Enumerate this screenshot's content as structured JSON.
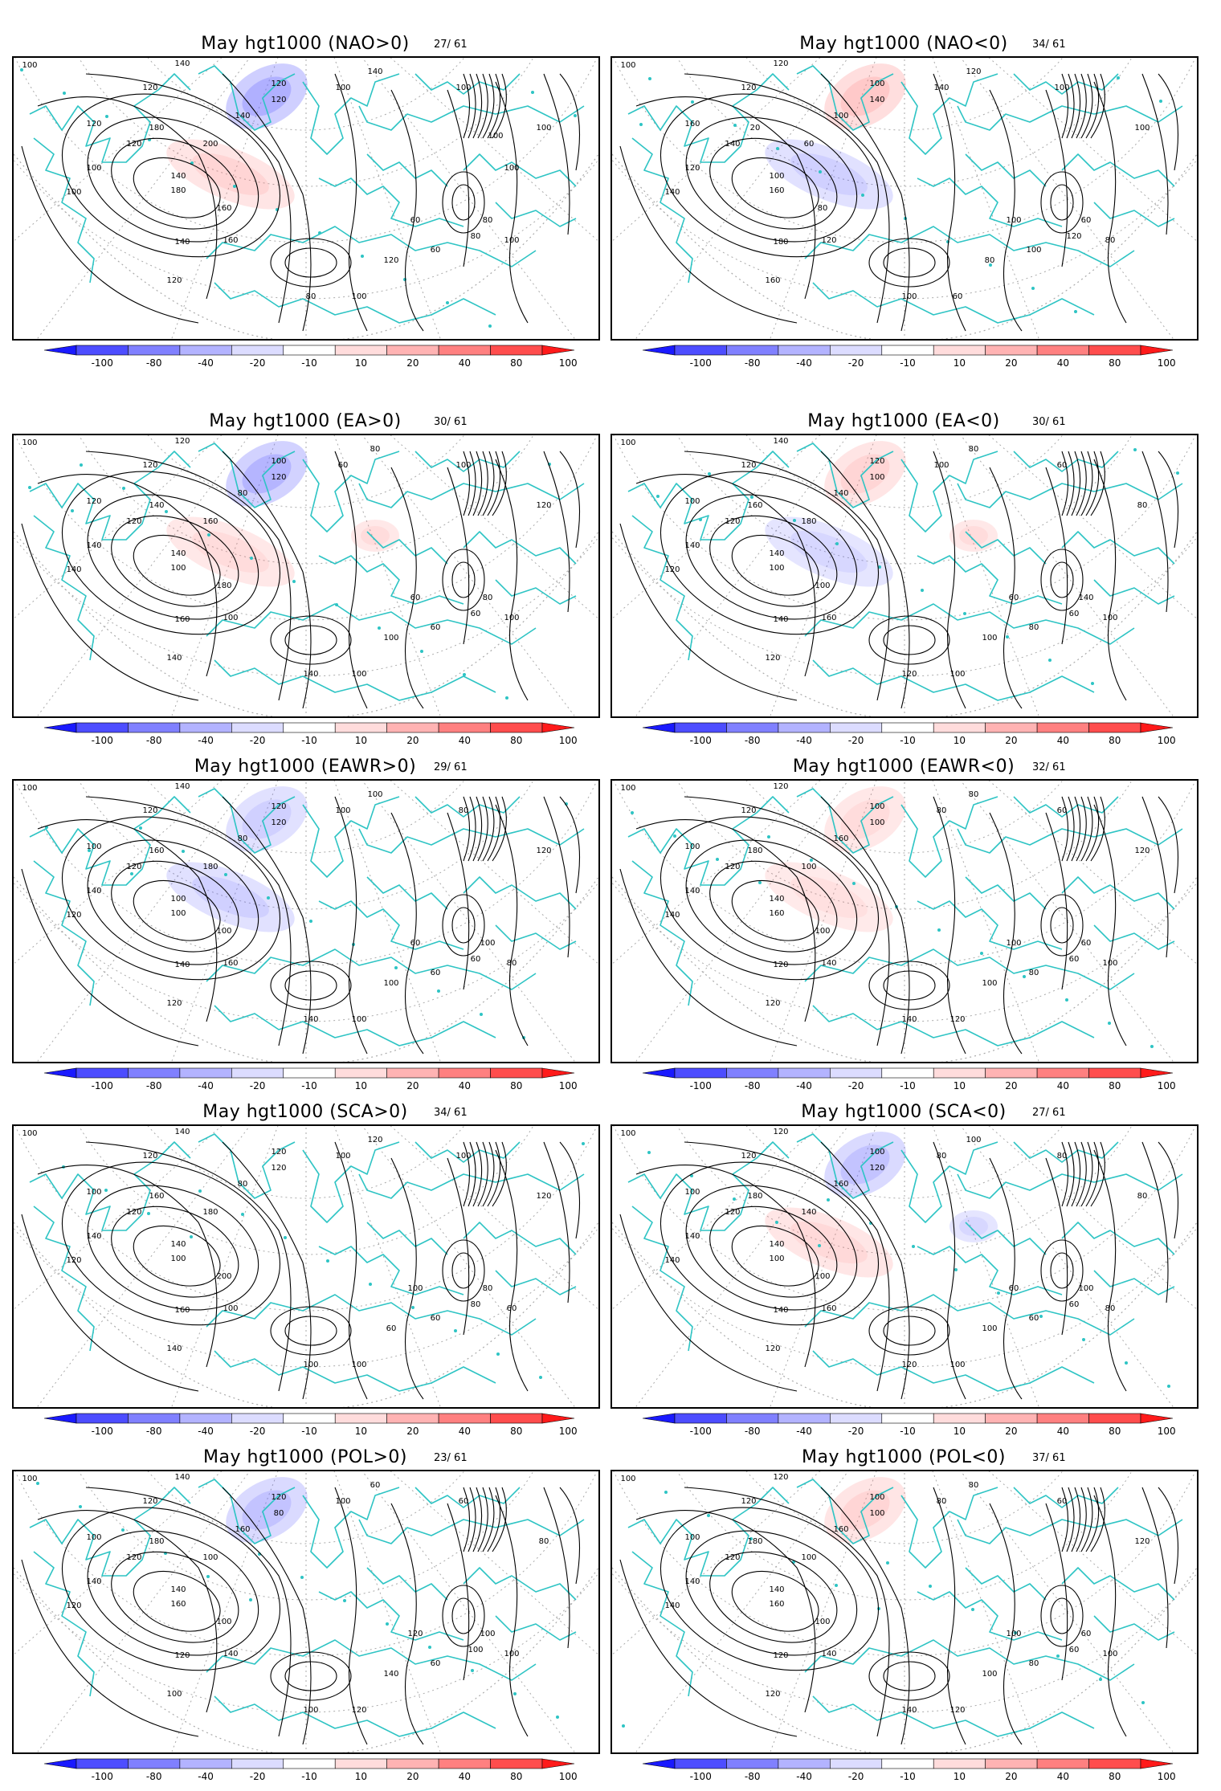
{
  "colorbar": {
    "labels": [
      "-100",
      "-80",
      "-40",
      "-20",
      "-10",
      "10",
      "20",
      "40",
      "80",
      "100"
    ],
    "colors": [
      "#1a1aff",
      "#4d4dff",
      "#8080ff",
      "#b3b3ff",
      "#dcdcff",
      "#ffffff",
      "#ffdcdc",
      "#ffb3b3",
      "#ff8080",
      "#ff4d4d",
      "#ff1a1a"
    ]
  },
  "contour_color": "#000000",
  "coast_color": "#2ec4c4",
  "grid_color": "#aaaaaa",
  "panels": [
    {
      "title": "May hgt1000 (NAO>0)",
      "count": "27/ 61",
      "labels": [
        "100",
        "120",
        "140",
        "120",
        "100",
        "120",
        "100",
        "140",
        "120",
        "100",
        "140",
        "180",
        "200",
        "160",
        "180",
        "160",
        "140",
        "120",
        "120",
        "140",
        "100",
        "80",
        "60",
        "100",
        "80",
        "60",
        "120",
        "100",
        "80",
        "100",
        "100",
        "100"
      ],
      "anomalies": [
        {
          "sign": "neg",
          "strength": 0.9
        },
        {
          "sign": "pos",
          "strength": 0.4
        }
      ]
    },
    {
      "title": "May hgt1000 (NAO<0)",
      "count": "34/ 61",
      "labels": [
        "100",
        "120",
        "100",
        "140",
        "120",
        "160",
        "140",
        "120",
        "100",
        "140",
        "100",
        "20",
        "60",
        "80",
        "160",
        "120",
        "180",
        "160",
        "140",
        "120",
        "100",
        "120",
        "100",
        "80",
        "60",
        "100",
        "80",
        "60",
        "100",
        "100"
      ],
      "anomalies": [
        {
          "sign": "pos",
          "strength": 0.6
        },
        {
          "sign": "neg",
          "strength": 0.4
        }
      ]
    },
    {
      "title": "May hgt1000 (EA>0)",
      "count": "30/ 61",
      "labels": [
        "100",
        "120",
        "140",
        "120",
        "140",
        "120",
        "140",
        "120",
        "100",
        "60",
        "80",
        "140",
        "160",
        "180",
        "100",
        "100",
        "160",
        "140",
        "120",
        "80",
        "100",
        "60",
        "60",
        "100",
        "80",
        "60",
        "100",
        "100",
        "140",
        "120"
      ],
      "anomalies": [
        {
          "sign": "neg",
          "strength": 0.8
        },
        {
          "sign": "pos",
          "strength": 0.3
        },
        {
          "sign": "pos",
          "strength": 0.3
        }
      ]
    },
    {
      "title": "May hgt1000 (EA<0)",
      "count": "30/ 61",
      "labels": [
        "100",
        "120",
        "140",
        "120",
        "140",
        "100",
        "120",
        "140",
        "120",
        "100",
        "140",
        "160",
        "180",
        "100",
        "100",
        "160",
        "140",
        "120",
        "100",
        "80",
        "60",
        "60",
        "80",
        "100",
        "140",
        "60",
        "100",
        "100",
        "120",
        "80"
      ],
      "anomalies": [
        {
          "sign": "pos",
          "strength": 0.4
        },
        {
          "sign": "neg",
          "strength": 0.3
        },
        {
          "sign": "pos",
          "strength": 0.3
        }
      ]
    },
    {
      "title": "May  hgt1000 (EAWR>0)",
      "count": "29/ 61",
      "labels": [
        "100",
        "120",
        "100",
        "120",
        "140",
        "100",
        "120",
        "140",
        "120",
        "100",
        "80",
        "160",
        "180",
        "100",
        "100",
        "160",
        "140",
        "120",
        "120",
        "100",
        "80",
        "60",
        "60",
        "80",
        "100",
        "60",
        "100",
        "100",
        "140",
        "120"
      ],
      "anomalies": [
        {
          "sign": "neg",
          "strength": 0.4
        },
        {
          "sign": "neg",
          "strength": 0.4
        }
      ]
    },
    {
      "title": "May hgt1000 (EAWR<0)",
      "count": "32/ 61",
      "labels": [
        "100",
        "120",
        "140",
        "120",
        "140",
        "100",
        "140",
        "120",
        "100",
        "80",
        "160",
        "180",
        "100",
        "100",
        "160",
        "140",
        "120",
        "120",
        "100",
        "80",
        "60",
        "60",
        "80",
        "100",
        "60",
        "100",
        "100",
        "120",
        "140",
        "120"
      ],
      "anomalies": [
        {
          "sign": "pos",
          "strength": 0.3
        },
        {
          "sign": "pos",
          "strength": 0.25
        }
      ]
    },
    {
      "title": "May hgt1000 (SCA>0)",
      "count": "34/ 61",
      "labels": [
        "100",
        "120",
        "140",
        "120",
        "140",
        "100",
        "120",
        "140",
        "120",
        "100",
        "80",
        "160",
        "180",
        "200",
        "100",
        "100",
        "160",
        "140",
        "120",
        "120",
        "100",
        "80",
        "60",
        "60",
        "80",
        "100",
        "60",
        "100",
        "100",
        "120"
      ],
      "anomalies": []
    },
    {
      "title": "May hgt1000 (SCA<0)",
      "count": "27/ 61",
      "labels": [
        "100",
        "120",
        "140",
        "120",
        "140",
        "100",
        "140",
        "120",
        "100",
        "80",
        "160",
        "180",
        "140",
        "100",
        "100",
        "160",
        "140",
        "120",
        "120",
        "100",
        "80",
        "60",
        "60",
        "80",
        "100",
        "60",
        "100",
        "100",
        "120",
        "80"
      ],
      "anomalies": [
        {
          "sign": "neg",
          "strength": 0.6
        },
        {
          "sign": "pos",
          "strength": 0.35
        },
        {
          "sign": "neg",
          "strength": 0.3
        }
      ]
    },
    {
      "title": "May hgt1000 (POL>0)",
      "count": "23/ 61",
      "labels": [
        "100",
        "120",
        "140",
        "120",
        "140",
        "100",
        "120",
        "140",
        "120",
        "100",
        "160",
        "180",
        "100",
        "100",
        "160",
        "140",
        "120",
        "100",
        "80",
        "60",
        "60",
        "100",
        "60",
        "100",
        "100",
        "120",
        "140",
        "120",
        "100",
        "80"
      ],
      "anomalies": [
        {
          "sign": "neg",
          "strength": 0.6
        }
      ]
    },
    {
      "title": "May hgt1000 (POL<0)",
      "count": "37/ 61",
      "labels": [
        "100",
        "120",
        "140",
        "120",
        "140",
        "100",
        "140",
        "120",
        "100",
        "80",
        "160",
        "180",
        "100",
        "100",
        "160",
        "140",
        "120",
        "120",
        "100",
        "80",
        "60",
        "60",
        "80",
        "100",
        "60",
        "100",
        "100",
        "120",
        "140",
        "120"
      ],
      "anomalies": [
        {
          "sign": "pos",
          "strength": 0.4
        }
      ]
    }
  ]
}
